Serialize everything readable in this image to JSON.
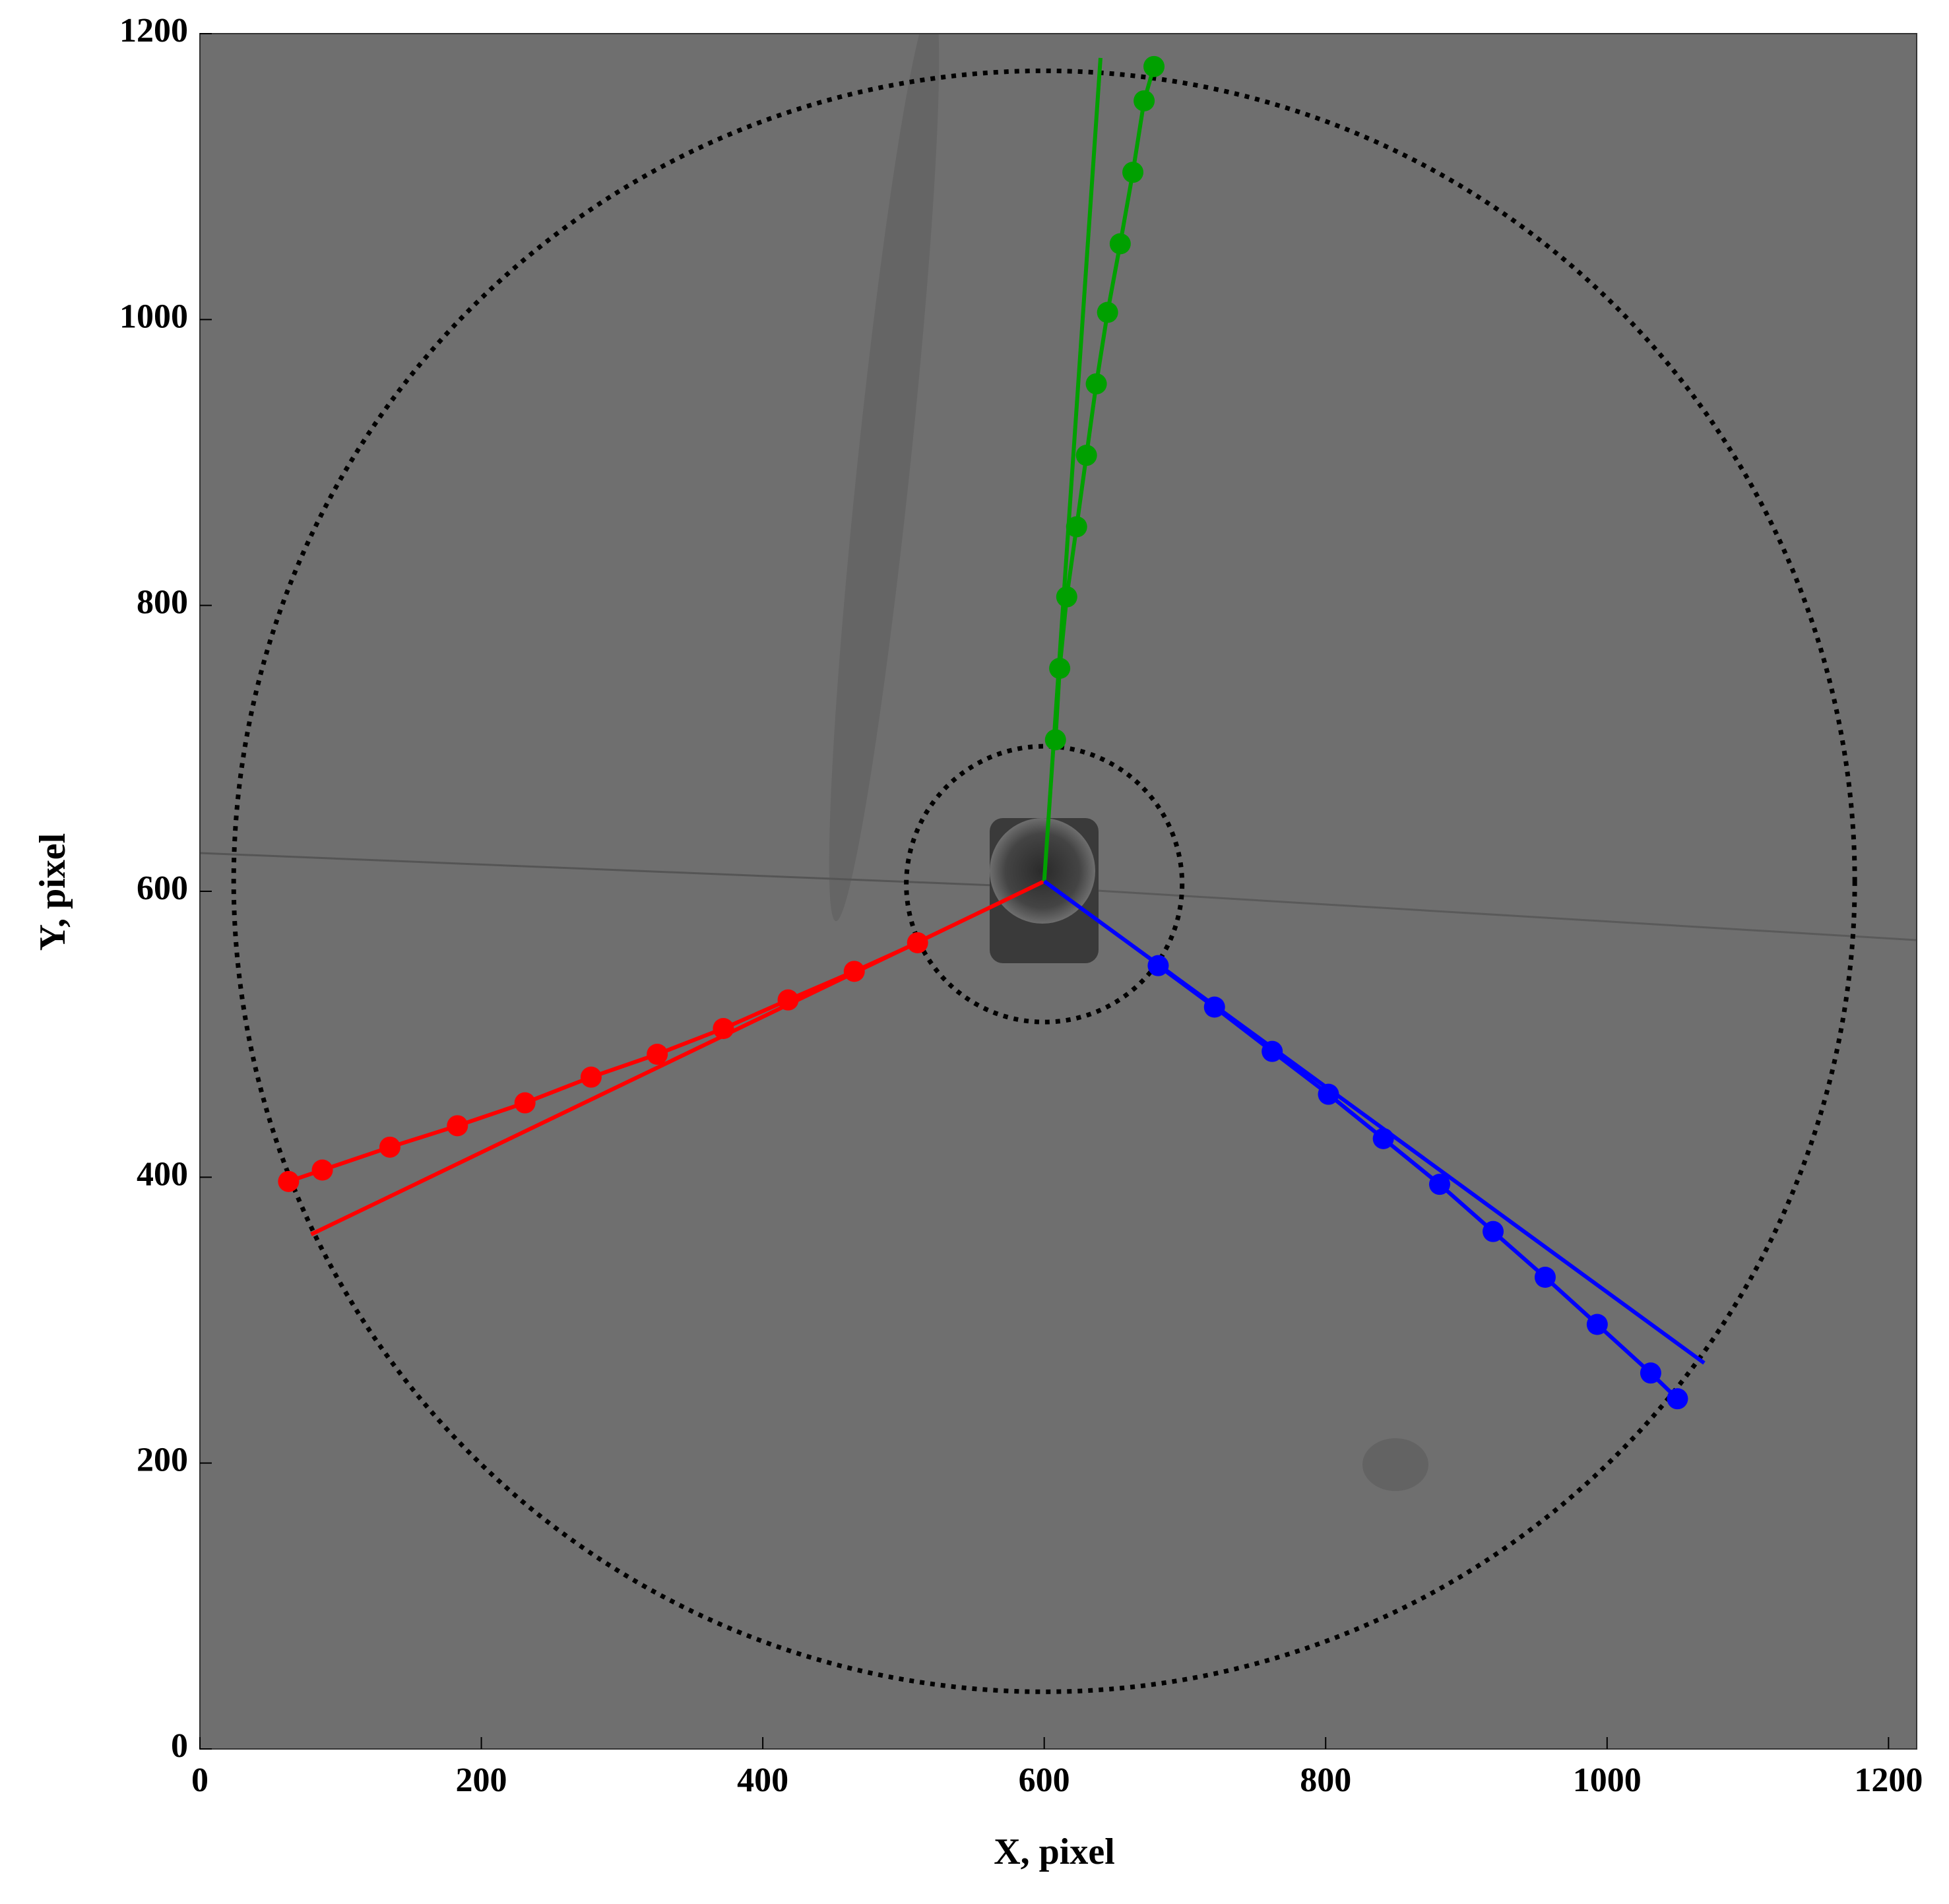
{
  "chart_data": {
    "type": "scatter",
    "x_label": "X, pixel",
    "y_label": "Y, pixel",
    "xlim": [
      0,
      1220
    ],
    "ylim": [
      0,
      1200
    ],
    "xticks": [
      0,
      200,
      400,
      600,
      800,
      1000,
      1200
    ],
    "yticks": [
      0,
      200,
      400,
      600,
      800,
      1000,
      1200
    ],
    "series": [
      {
        "color": "#ff0000",
        "x": [
          63,
          87,
          135,
          183,
          231,
          278,
          325,
          372,
          418,
          465,
          510
        ],
        "values": [
          397,
          405,
          421,
          436,
          452,
          470,
          486,
          504,
          524,
          544,
          564
        ]
      },
      {
        "color": "#00a000",
        "x": [
          608,
          611,
          616,
          623,
          630,
          637,
          645,
          654,
          663,
          671,
          678
        ],
        "values": [
          706,
          756,
          806,
          855,
          905,
          955,
          1005,
          1053,
          1103,
          1153,
          1177
        ]
      },
      {
        "color": "#0000ff",
        "x": [
          681,
          721,
          762,
          802,
          841,
          881,
          919,
          956,
          993,
          1031,
          1050
        ],
        "values": [
          548,
          519,
          488,
          458,
          427,
          395,
          362,
          330,
          297,
          263,
          245
        ]
      }
    ],
    "fit_lines": [
      {
        "color": "#ff0000",
        "x": [
          600,
          79
        ],
        "values": [
          607,
          360
        ]
      },
      {
        "color": "#00a000",
        "x": [
          600,
          640
        ],
        "values": [
          607,
          1183
        ]
      },
      {
        "color": "#0000ff",
        "x": [
          600,
          1069
        ],
        "values": [
          607,
          270
        ]
      }
    ],
    "circles": [
      {
        "cx": 600,
        "cy": 607,
        "r": 576
      },
      {
        "cx": 600,
        "cy": 605,
        "r": 98
      }
    ]
  }
}
